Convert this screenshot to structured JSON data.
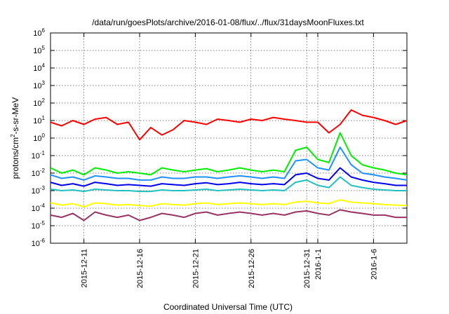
{
  "chart_data": {
    "type": "line",
    "title": "/data/run/goesPlots/archive/2016-01-08/flux/../flux/31daysMoonFluxes.txt",
    "xlabel": "Coordinated Universal Time (UTC)",
    "ylabel": {
      "base": "protons/cm",
      "sup": "2",
      "rest": "-s-sr-MeV"
    },
    "y_scale": "log",
    "ylim": [
      1e-06,
      1000000.0
    ],
    "xlim": [
      "2015-12-08",
      "2016-01-09"
    ],
    "grid": true,
    "legend": "none",
    "y_ticks": [
      {
        "value": 1e-06,
        "base": "10",
        "exp": "-6"
      },
      {
        "value": 1e-05,
        "base": "10",
        "exp": "-5"
      },
      {
        "value": 0.0001,
        "base": "10",
        "exp": "-4"
      },
      {
        "value": 0.001,
        "base": "10",
        "exp": "-3"
      },
      {
        "value": 0.01,
        "base": "10",
        "exp": "-2"
      },
      {
        "value": 0.1,
        "base": "10",
        "exp": "-1"
      },
      {
        "value": 1,
        "base": "10",
        "exp": "0"
      },
      {
        "value": 10.0,
        "base": "10",
        "exp": "1"
      },
      {
        "value": 100.0,
        "base": "10",
        "exp": "2"
      },
      {
        "value": 1000.0,
        "base": "10",
        "exp": "3"
      },
      {
        "value": 10000.0,
        "base": "10",
        "exp": "4"
      },
      {
        "value": 100000.0,
        "base": "10",
        "exp": "5"
      },
      {
        "value": 1000000.0,
        "base": "10",
        "exp": "6"
      }
    ],
    "x_ticks": [
      {
        "date": "2015-12-11",
        "label": "2015-12-11"
      },
      {
        "date": "2015-12-16",
        "label": "2015-12-16"
      },
      {
        "date": "2015-12-21",
        "label": "2015-12-21"
      },
      {
        "date": "2015-12-26",
        "label": "2015-12-26"
      },
      {
        "date": "2015-12-31",
        "label": "2015-12-31"
      },
      {
        "date": "2016-01-01",
        "label": "2016-1-1"
      },
      {
        "date": "2016-01-06",
        "label": "2016-1-6"
      }
    ],
    "x": [
      "2015-12-08",
      "2015-12-09",
      "2015-12-10",
      "2015-12-11",
      "2015-12-12",
      "2015-12-13",
      "2015-12-14",
      "2015-12-15",
      "2015-12-16",
      "2015-12-17",
      "2015-12-18",
      "2015-12-19",
      "2015-12-20",
      "2015-12-21",
      "2015-12-22",
      "2015-12-23",
      "2015-12-24",
      "2015-12-25",
      "2015-12-26",
      "2015-12-27",
      "2015-12-28",
      "2015-12-29",
      "2015-12-30",
      "2015-12-31",
      "2016-01-01",
      "2016-01-02",
      "2016-01-03",
      "2016-01-04",
      "2016-01-05",
      "2016-01-06",
      "2016-01-07",
      "2016-01-08",
      "2016-01-09"
    ],
    "series": [
      {
        "color": "#ff0000",
        "values": [
          8,
          5,
          10,
          6,
          12,
          15,
          6,
          8,
          0.8,
          4,
          1.5,
          3,
          10,
          8,
          6,
          12,
          10,
          8,
          12,
          10,
          15,
          12,
          10,
          8,
          8,
          2,
          6,
          40,
          20,
          15,
          10,
          6,
          10
        ]
      },
      {
        "color": "#00ee00",
        "values": [
          0.02,
          0.01,
          0.015,
          0.008,
          0.02,
          0.015,
          0.01,
          0.012,
          0.01,
          0.008,
          0.02,
          0.015,
          0.012,
          0.015,
          0.018,
          0.012,
          0.015,
          0.02,
          0.015,
          0.012,
          0.015,
          0.012,
          0.2,
          0.3,
          0.06,
          0.04,
          2,
          0.1,
          0.03,
          0.02,
          0.015,
          0.01,
          0.008
        ]
      },
      {
        "color": "#1e90ff",
        "values": [
          0.008,
          0.005,
          0.006,
          0.004,
          0.007,
          0.006,
          0.005,
          0.005,
          0.004,
          0.004,
          0.006,
          0.005,
          0.005,
          0.006,
          0.006,
          0.005,
          0.006,
          0.007,
          0.006,
          0.005,
          0.006,
          0.005,
          0.05,
          0.06,
          0.02,
          0.015,
          0.3,
          0.03,
          0.01,
          0.008,
          0.006,
          0.005,
          0.004
        ]
      },
      {
        "color": "#0000ee",
        "values": [
          0.003,
          0.002,
          0.0025,
          0.0018,
          0.003,
          0.0025,
          0.002,
          0.0022,
          0.002,
          0.0018,
          0.0025,
          0.0022,
          0.002,
          0.0025,
          0.0028,
          0.0022,
          0.0025,
          0.003,
          0.0025,
          0.0022,
          0.0025,
          0.0022,
          0.008,
          0.01,
          0.005,
          0.004,
          0.02,
          0.006,
          0.004,
          0.003,
          0.0025,
          0.002,
          0.002
        ]
      },
      {
        "color": "#20c0c0",
        "values": [
          0.0012,
          0.001,
          0.0011,
          0.0009,
          0.0012,
          0.0011,
          0.001,
          0.001,
          0.0009,
          0.0009,
          0.0011,
          0.001,
          0.001,
          0.0011,
          0.0012,
          0.001,
          0.0011,
          0.0012,
          0.0011,
          0.001,
          0.0011,
          0.001,
          0.003,
          0.004,
          0.002,
          0.0015,
          0.006,
          0.002,
          0.0015,
          0.0012,
          0.0011,
          0.001,
          0.001
        ]
      },
      {
        "color": "#ffff00",
        "values": [
          0.0002,
          0.00015,
          0.00018,
          0.00012,
          0.0002,
          0.00018,
          0.00015,
          0.00016,
          0.00014,
          0.00013,
          0.00018,
          0.00016,
          0.00015,
          0.00018,
          0.0002,
          0.00016,
          0.00018,
          0.0002,
          0.00018,
          0.00016,
          0.00018,
          0.00016,
          0.00022,
          0.00025,
          0.0002,
          0.00018,
          0.0003,
          0.00022,
          0.0002,
          0.00018,
          0.00016,
          0.00015,
          0.00014
        ]
      },
      {
        "color": "#993366",
        "values": [
          4e-05,
          3e-05,
          5e-05,
          2e-05,
          6e-05,
          4e-05,
          3e-05,
          4e-05,
          2e-05,
          3e-05,
          5e-05,
          4e-05,
          3e-05,
          5e-05,
          6e-05,
          4e-05,
          5e-05,
          6e-05,
          5e-05,
          4e-05,
          5e-05,
          4e-05,
          6e-05,
          7e-05,
          5e-05,
          4e-05,
          8e-05,
          6e-05,
          5e-05,
          4e-05,
          4e-05,
          3e-05,
          3e-05
        ]
      }
    ]
  }
}
